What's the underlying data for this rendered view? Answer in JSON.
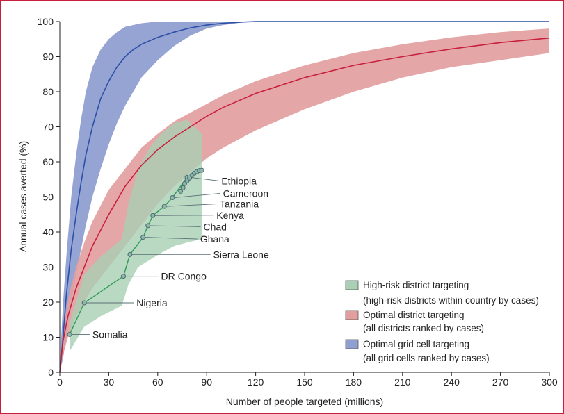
{
  "colors": {
    "frame": "#c8203c",
    "blue_band": "#8f9fd0",
    "blue_line": "#2b4fa8",
    "red_band": "#e29e9e",
    "red_line": "#c8203c",
    "green_band": "#a9cfb4",
    "green_line": "#2e9a55",
    "marker_fill": "#8fb8a8",
    "marker_stroke": "#4a6a72"
  },
  "chart_data": {
    "type": "line",
    "xlabel": "Number of people targeted (millions)",
    "ylabel": "Annual cases averted (%)",
    "xlim": [
      0,
      300
    ],
    "ylim": [
      0,
      100
    ],
    "xticks": [
      0,
      30,
      60,
      90,
      120,
      150,
      180,
      210,
      240,
      270,
      300
    ],
    "yticks": [
      0,
      10,
      20,
      30,
      40,
      50,
      60,
      70,
      80,
      90,
      100
    ],
    "grid": false,
    "legend_position": "bottom-right",
    "series": [
      {
        "name": "Optimal grid cell targeting",
        "sublabel": "(all grid cells ranked by cases)",
        "key": "blue",
        "line": [
          [
            0,
            0
          ],
          [
            2,
            10
          ],
          [
            4,
            22
          ],
          [
            7,
            35
          ],
          [
            10,
            45
          ],
          [
            13,
            54
          ],
          [
            16,
            62
          ],
          [
            20,
            70
          ],
          [
            25,
            78
          ],
          [
            30,
            83
          ],
          [
            35,
            87
          ],
          [
            40,
            90
          ],
          [
            45,
            92
          ],
          [
            50,
            93.5
          ],
          [
            60,
            95.5
          ],
          [
            70,
            97
          ],
          [
            80,
            98.2
          ],
          [
            90,
            99
          ],
          [
            100,
            99.5
          ],
          [
            110,
            99.8
          ],
          [
            120,
            100
          ],
          [
            150,
            100
          ],
          [
            200,
            100
          ],
          [
            250,
            100
          ],
          [
            300,
            100
          ]
        ],
        "upper": [
          [
            0,
            2
          ],
          [
            2,
            20
          ],
          [
            4,
            33
          ],
          [
            7,
            50
          ],
          [
            10,
            62
          ],
          [
            13,
            72
          ],
          [
            16,
            80
          ],
          [
            20,
            87
          ],
          [
            25,
            92
          ],
          [
            30,
            95
          ],
          [
            35,
            97
          ],
          [
            40,
            98.5
          ],
          [
            50,
            99.5
          ],
          [
            60,
            100
          ],
          [
            100,
            100
          ],
          [
            300,
            100
          ]
        ],
        "lower": [
          [
            0,
            0
          ],
          [
            2,
            4
          ],
          [
            4,
            10
          ],
          [
            7,
            20
          ],
          [
            10,
            28
          ],
          [
            13,
            35
          ],
          [
            16,
            42
          ],
          [
            20,
            50
          ],
          [
            25,
            58
          ],
          [
            30,
            65
          ],
          [
            35,
            71
          ],
          [
            40,
            76
          ],
          [
            50,
            84
          ],
          [
            60,
            89
          ],
          [
            70,
            93
          ],
          [
            80,
            96
          ],
          [
            90,
            98
          ],
          [
            100,
            99
          ],
          [
            110,
            99.6
          ],
          [
            120,
            100
          ],
          [
            300,
            100
          ]
        ]
      },
      {
        "name": "Optimal district targeting",
        "sublabel": "(all districts ranked by cases)",
        "key": "red",
        "line": [
          [
            0,
            0
          ],
          [
            2,
            9
          ],
          [
            5,
            16
          ],
          [
            10,
            24
          ],
          [
            15,
            30
          ],
          [
            20,
            36
          ],
          [
            30,
            45
          ],
          [
            40,
            53
          ],
          [
            50,
            59
          ],
          [
            60,
            63.5
          ],
          [
            70,
            67
          ],
          [
            80,
            70
          ],
          [
            90,
            73
          ],
          [
            100,
            75.5
          ],
          [
            120,
            79.5
          ],
          [
            150,
            84
          ],
          [
            180,
            87.5
          ],
          [
            210,
            90
          ],
          [
            240,
            92.2
          ],
          [
            270,
            94
          ],
          [
            300,
            95.3
          ]
        ],
        "upper": [
          [
            0,
            2
          ],
          [
            3,
            15
          ],
          [
            6,
            23
          ],
          [
            10,
            30
          ],
          [
            15,
            37
          ],
          [
            20,
            43
          ],
          [
            30,
            52
          ],
          [
            40,
            58
          ],
          [
            50,
            64
          ],
          [
            60,
            68
          ],
          [
            70,
            71.5
          ],
          [
            80,
            74
          ],
          [
            90,
            76.5
          ],
          [
            100,
            79
          ],
          [
            120,
            83
          ],
          [
            150,
            87.5
          ],
          [
            180,
            91
          ],
          [
            210,
            93.5
          ],
          [
            240,
            95.5
          ],
          [
            270,
            97
          ],
          [
            300,
            98
          ]
        ],
        "lower": [
          [
            0,
            0
          ],
          [
            2,
            5
          ],
          [
            5,
            10
          ],
          [
            10,
            16
          ],
          [
            15,
            20
          ],
          [
            20,
            24
          ],
          [
            30,
            30
          ],
          [
            40,
            36
          ],
          [
            50,
            42
          ],
          [
            60,
            48
          ],
          [
            70,
            53
          ],
          [
            80,
            57
          ],
          [
            90,
            61
          ],
          [
            100,
            64
          ],
          [
            120,
            69
          ],
          [
            150,
            75
          ],
          [
            180,
            80
          ],
          [
            210,
            84
          ],
          [
            240,
            87
          ],
          [
            270,
            89
          ],
          [
            300,
            91
          ]
        ]
      },
      {
        "name": "High-risk district targeting",
        "sublabel": "(high-risk districts within country by cases)",
        "key": "green",
        "upper": [
          [
            6,
            14
          ],
          [
            15,
            28
          ],
          [
            25,
            33
          ],
          [
            38,
            38
          ],
          [
            42,
            48
          ],
          [
            48,
            58
          ],
          [
            55,
            64
          ],
          [
            62,
            68
          ],
          [
            70,
            71
          ],
          [
            78,
            72
          ],
          [
            87,
            68
          ]
        ],
        "lower": [
          [
            6,
            6
          ],
          [
            15,
            13
          ],
          [
            25,
            16
          ],
          [
            38,
            19
          ],
          [
            42,
            25
          ],
          [
            48,
            30
          ],
          [
            55,
            32
          ],
          [
            62,
            34
          ],
          [
            70,
            36
          ],
          [
            78,
            37
          ],
          [
            87,
            38
          ]
        ]
      }
    ],
    "countries": [
      {
        "name": "Somalia",
        "x": 6,
        "y": 10.8,
        "label_x": 20,
        "label_y": 10.8
      },
      {
        "name": "Nigeria",
        "x": 15,
        "y": 19.8,
        "label_x": 47,
        "label_y": 19.8
      },
      {
        "name": "DR Congo",
        "x": 39,
        "y": 27.4,
        "label_x": 62,
        "label_y": 27.4
      },
      {
        "name": "Sierra Leone",
        "x": 43,
        "y": 33.6,
        "label_x": 94,
        "label_y": 33.6
      },
      {
        "name": "Ghana",
        "x": 51,
        "y": 38.5,
        "label_x": 86,
        "label_y": 38.0
      },
      {
        "name": "Chad",
        "x": 54,
        "y": 41.8,
        "label_x": 88,
        "label_y": 41.5
      },
      {
        "name": "Kenya",
        "x": 57,
        "y": 44.7,
        "label_x": 96,
        "label_y": 44.8
      },
      {
        "name": "Tanzania",
        "x": 64,
        "y": 47.3,
        "label_x": 98,
        "label_y": 48.0
      },
      {
        "name": "Cameroon",
        "x": 69,
        "y": 49.8,
        "label_x": 100,
        "label_y": 51.0
      },
      {
        "name": "Ethiopia",
        "x": 78,
        "y": 55.6,
        "label_x": 99,
        "label_y": 54.6
      }
    ],
    "green_line_extra": [
      [
        74,
        51.6
      ],
      [
        75.5,
        52.6
      ],
      [
        76.5,
        53.8
      ],
      [
        78,
        54.6
      ],
      [
        79.5,
        55.4
      ],
      [
        81,
        56.2
      ],
      [
        82.5,
        56.8
      ],
      [
        84,
        57.2
      ],
      [
        85.5,
        57.5
      ],
      [
        87,
        57.6
      ]
    ]
  }
}
